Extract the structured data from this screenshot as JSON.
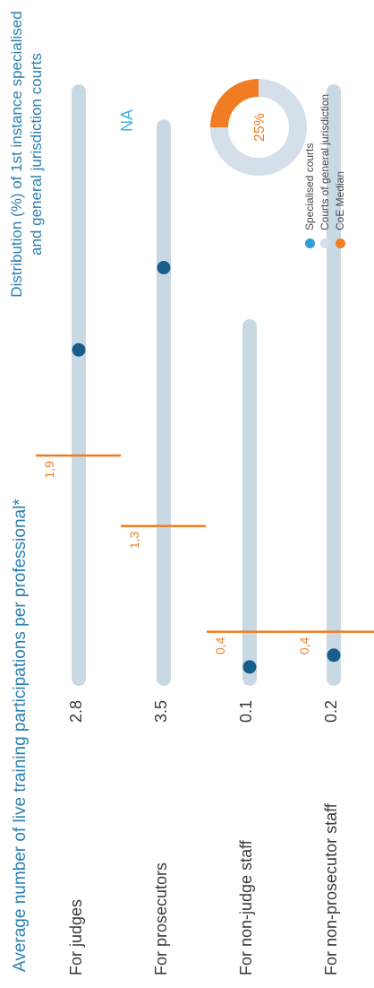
{
  "chart_data": [
    {
      "type": "dot-range",
      "title": "Average number of live training participations per professional*",
      "categories": [
        "For judges",
        "For prosecutors",
        "For non-judge staff",
        "For non-prosecutor staff"
      ],
      "values": [
        2.8,
        3.5,
        0.1,
        0.2
      ],
      "value_labels": [
        "2.8",
        "3.5",
        "0.1",
        "0.2"
      ],
      "medians": [
        1.9,
        1.3,
        0.4,
        0.4
      ],
      "median_labels": [
        "1,9",
        "1,3",
        "0,4",
        "0,4"
      ],
      "range_max": [
        5.0,
        4.7,
        3.0,
        5.0
      ],
      "xlim": [
        0,
        5.0
      ],
      "colors": {
        "range": "#c9d9e4",
        "value": "#175e8a",
        "median": "#f07c23"
      }
    },
    {
      "type": "pie",
      "title": "Distribution (%) of 1st instance specialised and general jurisdiction courts",
      "placeholder": "NA",
      "slices": [
        {
          "name": "CoE Median",
          "value": 25,
          "color": "#f07c23"
        },
        {
          "name": "Courts of general jurisdiction",
          "value": 75,
          "color": "#d5dfe9"
        }
      ],
      "center_label": "25%",
      "legend": [
        {
          "label": "Specialised courts",
          "color": "#2e9fd9"
        },
        {
          "label": "Courts of general jurisdiction",
          "color": "#d5dfe9"
        },
        {
          "label": "CoE Median",
          "color": "#f07c23"
        }
      ]
    }
  ]
}
